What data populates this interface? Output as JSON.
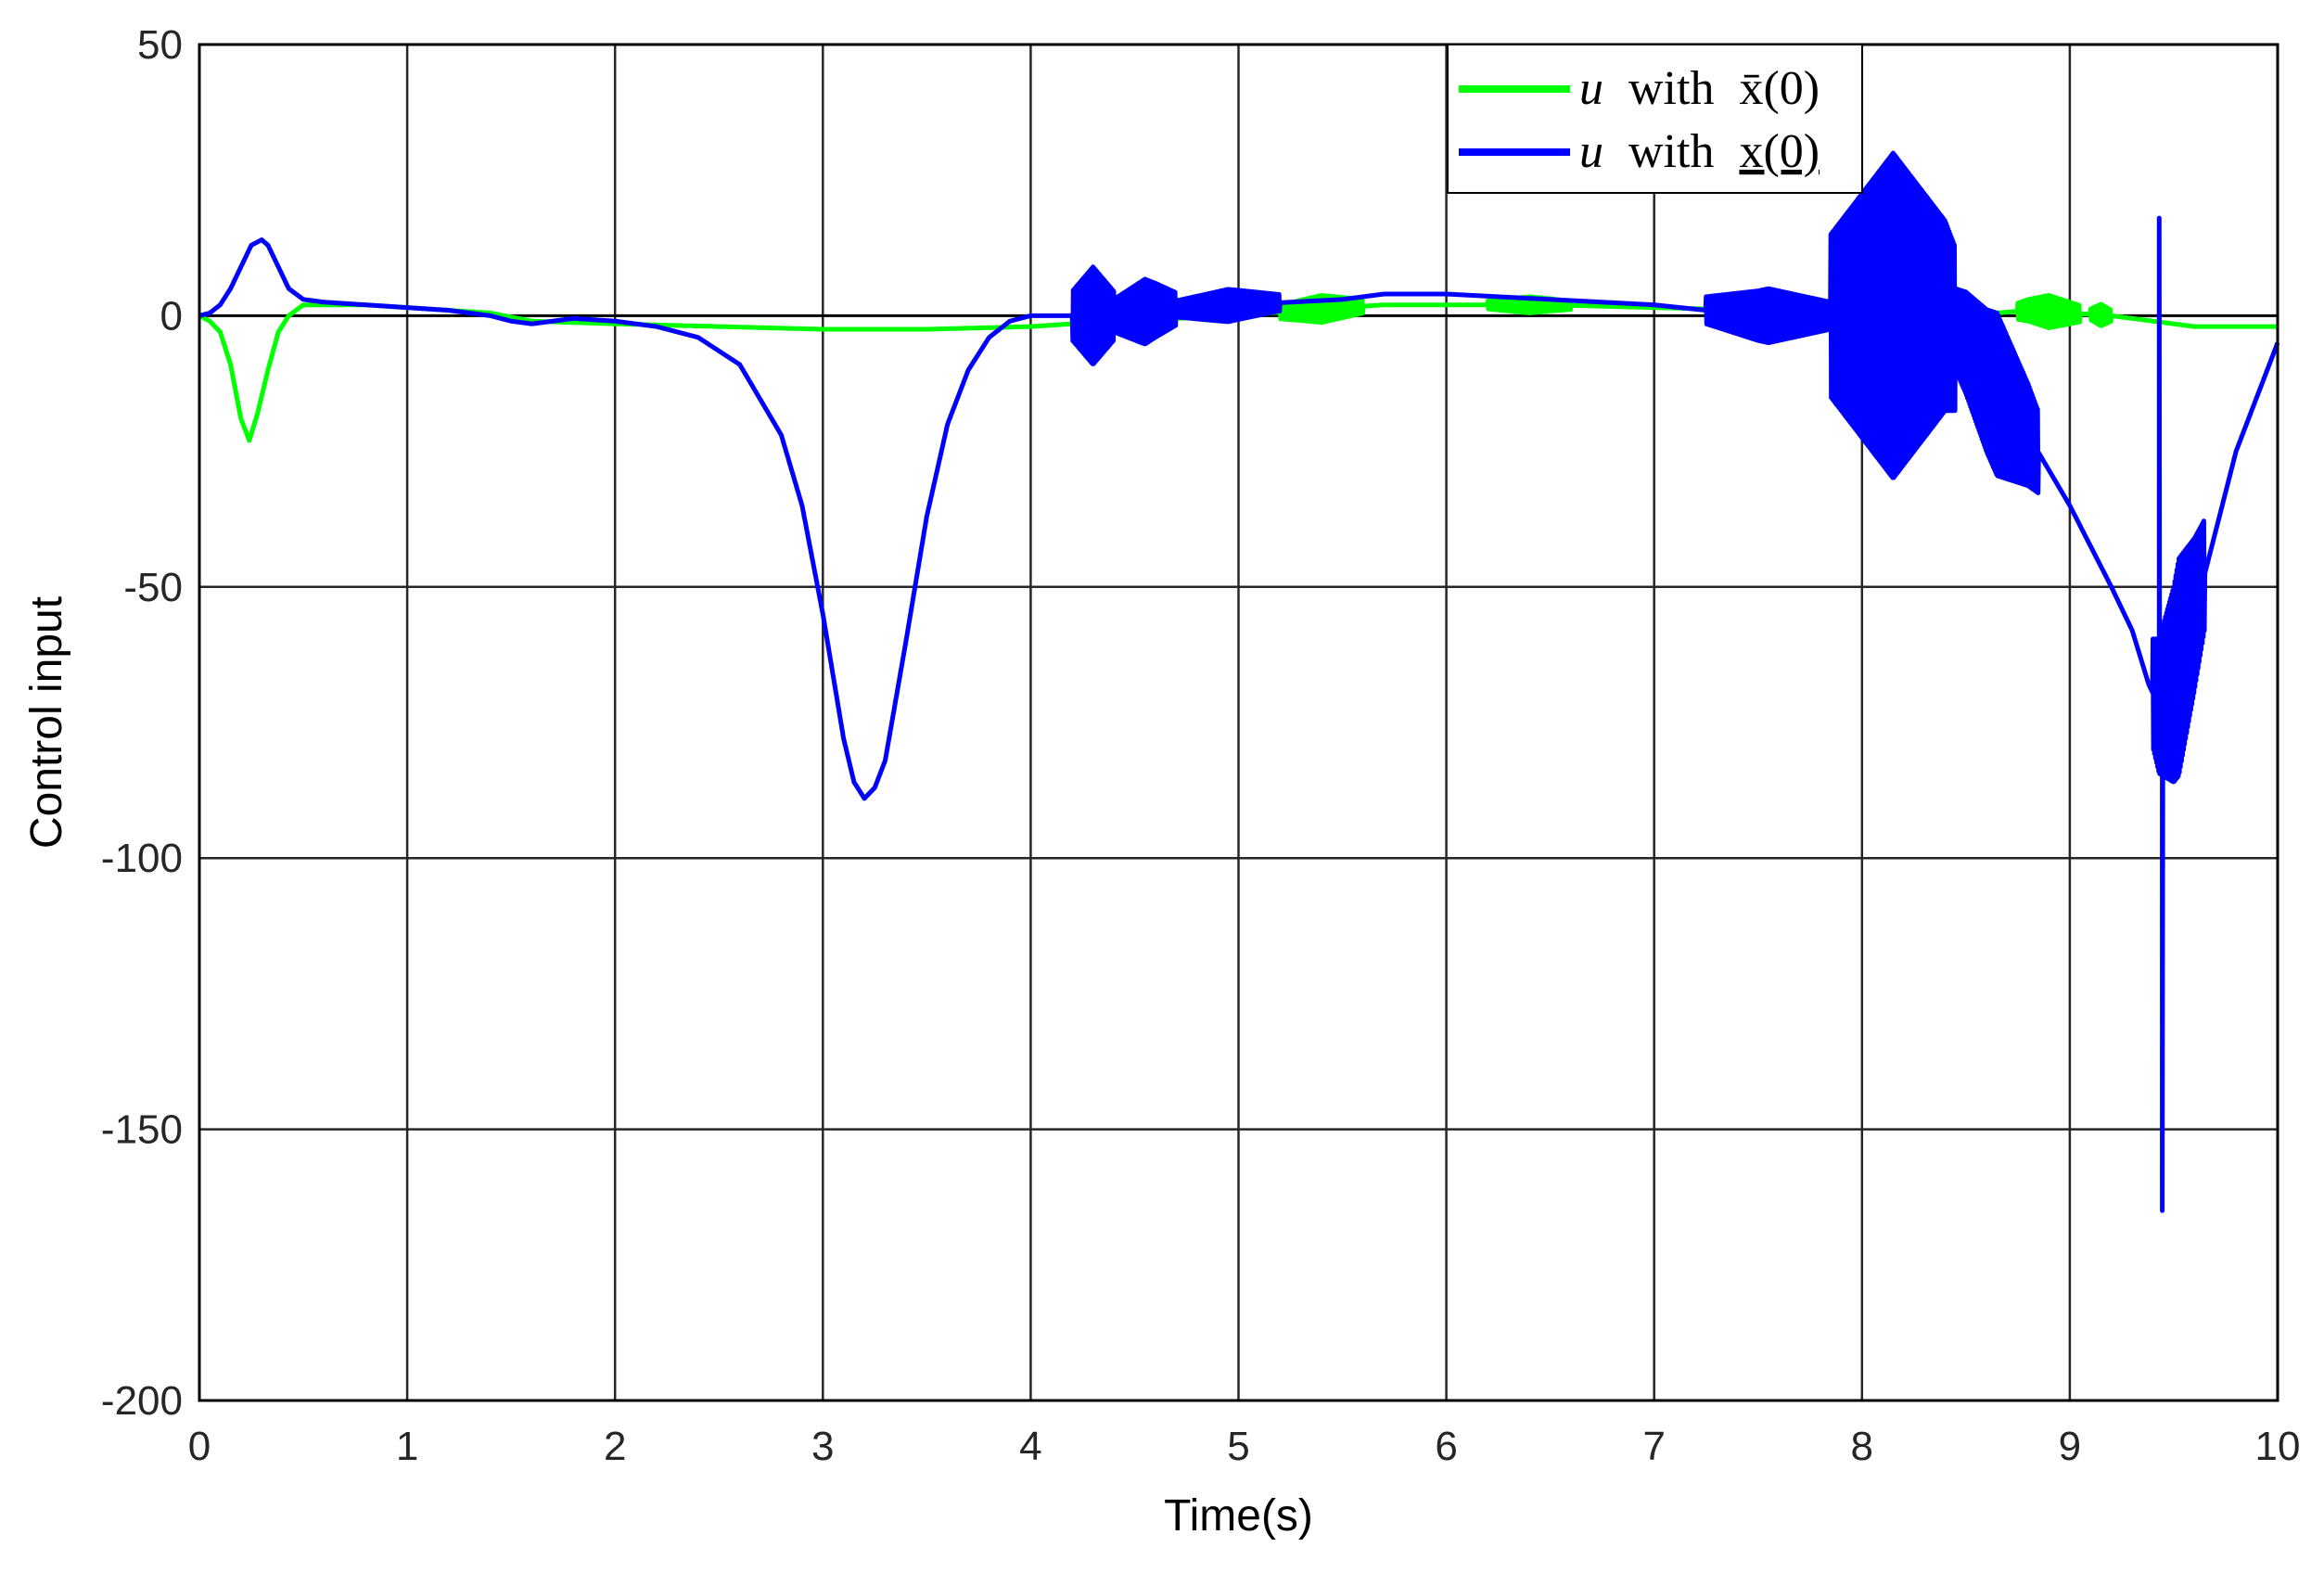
{
  "chart_data": {
    "type": "line",
    "xlabel": "Time(s)",
    "ylabel": "Control input",
    "xlim": [
      0,
      10
    ],
    "ylim": [
      -200,
      50
    ],
    "xticks": [
      0,
      1,
      2,
      3,
      4,
      5,
      6,
      7,
      8,
      9,
      10
    ],
    "yticks": [
      -200,
      -150,
      -100,
      -50,
      0,
      50
    ],
    "grid": true,
    "legend_position": "top-right",
    "legend": {
      "green": {
        "var": "u",
        "word": "with",
        "state": "x̄(0)"
      },
      "blue": {
        "var": "u",
        "word": "with",
        "state": "x(0)"
      }
    },
    "series": [
      {
        "name": "u with x̄(0)",
        "color": "#00ff00",
        "x": [
          0,
          0.05,
          0.1,
          0.15,
          0.2,
          0.24,
          0.28,
          0.33,
          0.38,
          0.43,
          0.5,
          0.6,
          0.8,
          1.0,
          1.2,
          1.4,
          1.6,
          2.0,
          2.5,
          3.0,
          3.5,
          4.0,
          4.4,
          5.0,
          5.3,
          5.7,
          6.0,
          6.5,
          7.0,
          7.5,
          8.0,
          8.5,
          8.8,
          9.0,
          9.2,
          9.4,
          9.6,
          10.0
        ],
        "y": [
          0,
          -1,
          -3,
          -9,
          -19,
          -23,
          -18,
          -10,
          -3,
          0,
          2,
          2,
          2,
          1.5,
          1,
          0.5,
          -1,
          -1.5,
          -2,
          -2.5,
          -2.5,
          -2,
          -1,
          0,
          1,
          2,
          2,
          2,
          1.5,
          1,
          0.5,
          0,
          1,
          0.5,
          0,
          -1,
          -2,
          -2
        ],
        "oscillations": [
          {
            "start": 5.2,
            "end": 5.6,
            "amplitude": 2.5
          },
          {
            "start": 6.2,
            "end": 6.6,
            "amplitude": 1.5
          },
          {
            "start": 8.75,
            "end": 9.05,
            "amplitude": 3
          },
          {
            "start": 9.1,
            "end": 9.2,
            "amplitude": 2
          }
        ]
      },
      {
        "name": "u with x(0)",
        "color": "#0000ff",
        "x": [
          0,
          0.05,
          0.1,
          0.15,
          0.2,
          0.25,
          0.3,
          0.33,
          0.38,
          0.43,
          0.5,
          0.6,
          0.8,
          1.0,
          1.2,
          1.4,
          1.5,
          1.6,
          1.7,
          1.8,
          2.0,
          2.2,
          2.4,
          2.6,
          2.8,
          2.9,
          3.0,
          3.1,
          3.15,
          3.2,
          3.25,
          3.3,
          3.4,
          3.5,
          3.6,
          3.7,
          3.8,
          3.9,
          4.0,
          4.2,
          4.4,
          4.6,
          5.0,
          5.5,
          5.7,
          6.0,
          6.5,
          7.0,
          7.25,
          7.5,
          7.8,
          8.0,
          8.4,
          8.5,
          8.6,
          8.8,
          9.0,
          9.2,
          9.3,
          9.38,
          9.43,
          9.5,
          9.6,
          9.7,
          9.8,
          9.9,
          10.0
        ],
        "y": [
          0,
          0.5,
          2,
          5,
          9,
          13,
          14,
          13,
          9,
          5,
          3,
          2.5,
          2,
          1.5,
          1,
          0,
          -1,
          -1.5,
          -1,
          -0.5,
          -1,
          -2,
          -4,
          -9,
          -22,
          -35,
          -55,
          -78,
          -86,
          -89,
          -87,
          -82,
          -60,
          -37,
          -20,
          -10,
          -4,
          -1,
          0,
          0,
          0,
          1,
          2,
          3,
          4,
          4,
          3,
          2,
          1,
          0,
          0,
          0,
          0,
          -5,
          -12,
          -22,
          -35,
          -50,
          -58,
          -68,
          -72,
          -68,
          -55,
          -40,
          -25,
          -15,
          -5
        ],
        "oscillations": [
          {
            "start": 4.2,
            "end": 4.4,
            "amplitude": 9
          },
          {
            "start": 4.4,
            "end": 4.7,
            "amplitude": 6
          },
          {
            "start": 4.7,
            "end": 5.2,
            "amplitude": 3
          },
          {
            "start": 7.25,
            "end": 7.85,
            "amplitude": 5
          },
          {
            "start": 7.85,
            "end": 8.45,
            "amplitude": 30
          },
          {
            "start": 8.45,
            "end": 8.85,
            "amplitude": 15
          },
          {
            "start": 9.4,
            "end": 9.65,
            "amplitude": 20
          }
        ],
        "spikes": [
          {
            "x": 9.43,
            "y": 18
          },
          {
            "x": 9.445,
            "y": -165
          },
          {
            "x": 9.46,
            "y": -80
          }
        ]
      }
    ]
  }
}
